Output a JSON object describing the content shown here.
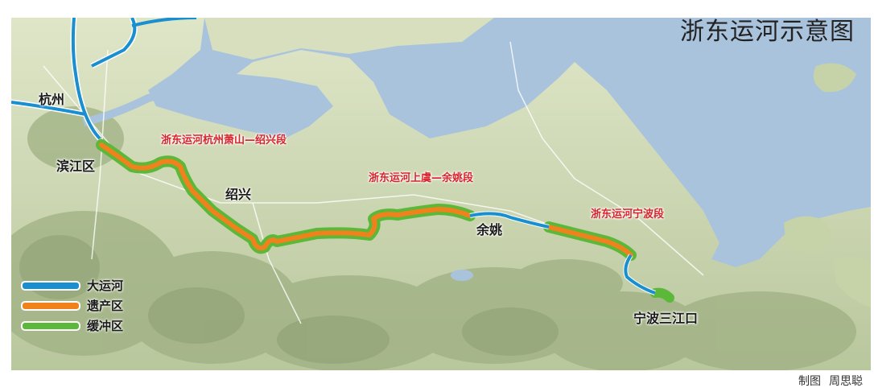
{
  "map": {
    "title": "浙东运河示意图",
    "cities": [
      {
        "id": "hangzhou",
        "label": "杭州"
      },
      {
        "id": "binjiang",
        "label": "滨江区"
      },
      {
        "id": "shaoxing",
        "label": "绍兴"
      },
      {
        "id": "yuyao",
        "label": "余姚"
      },
      {
        "id": "ningbo",
        "label": "宁波三江口"
      }
    ],
    "segments": [
      {
        "id": "hangzhou-xiaoshan-shaoxing",
        "label": "浙东运河杭州萧山—绍兴段"
      },
      {
        "id": "shangyu-yuyao",
        "label": "浙东运河上虞—余姚段"
      },
      {
        "id": "ningbo",
        "label": "浙东运河宁波段"
      }
    ],
    "legend": [
      {
        "label": "大运河",
        "color": "#1a8fd0"
      },
      {
        "label": "遗产区",
        "color": "#f0821e"
      },
      {
        "label": "缓冲区",
        "color": "#5cb838"
      }
    ],
    "colors": {
      "sea": "#a9c3dc",
      "land": "#cfd9b8",
      "mountain": "#a9b88f",
      "grand_canal": "#1a8fd0",
      "heritage": "#f0821e",
      "buffer": "#5cb838"
    }
  },
  "credit": {
    "label": "制图",
    "author": "周思聪"
  }
}
